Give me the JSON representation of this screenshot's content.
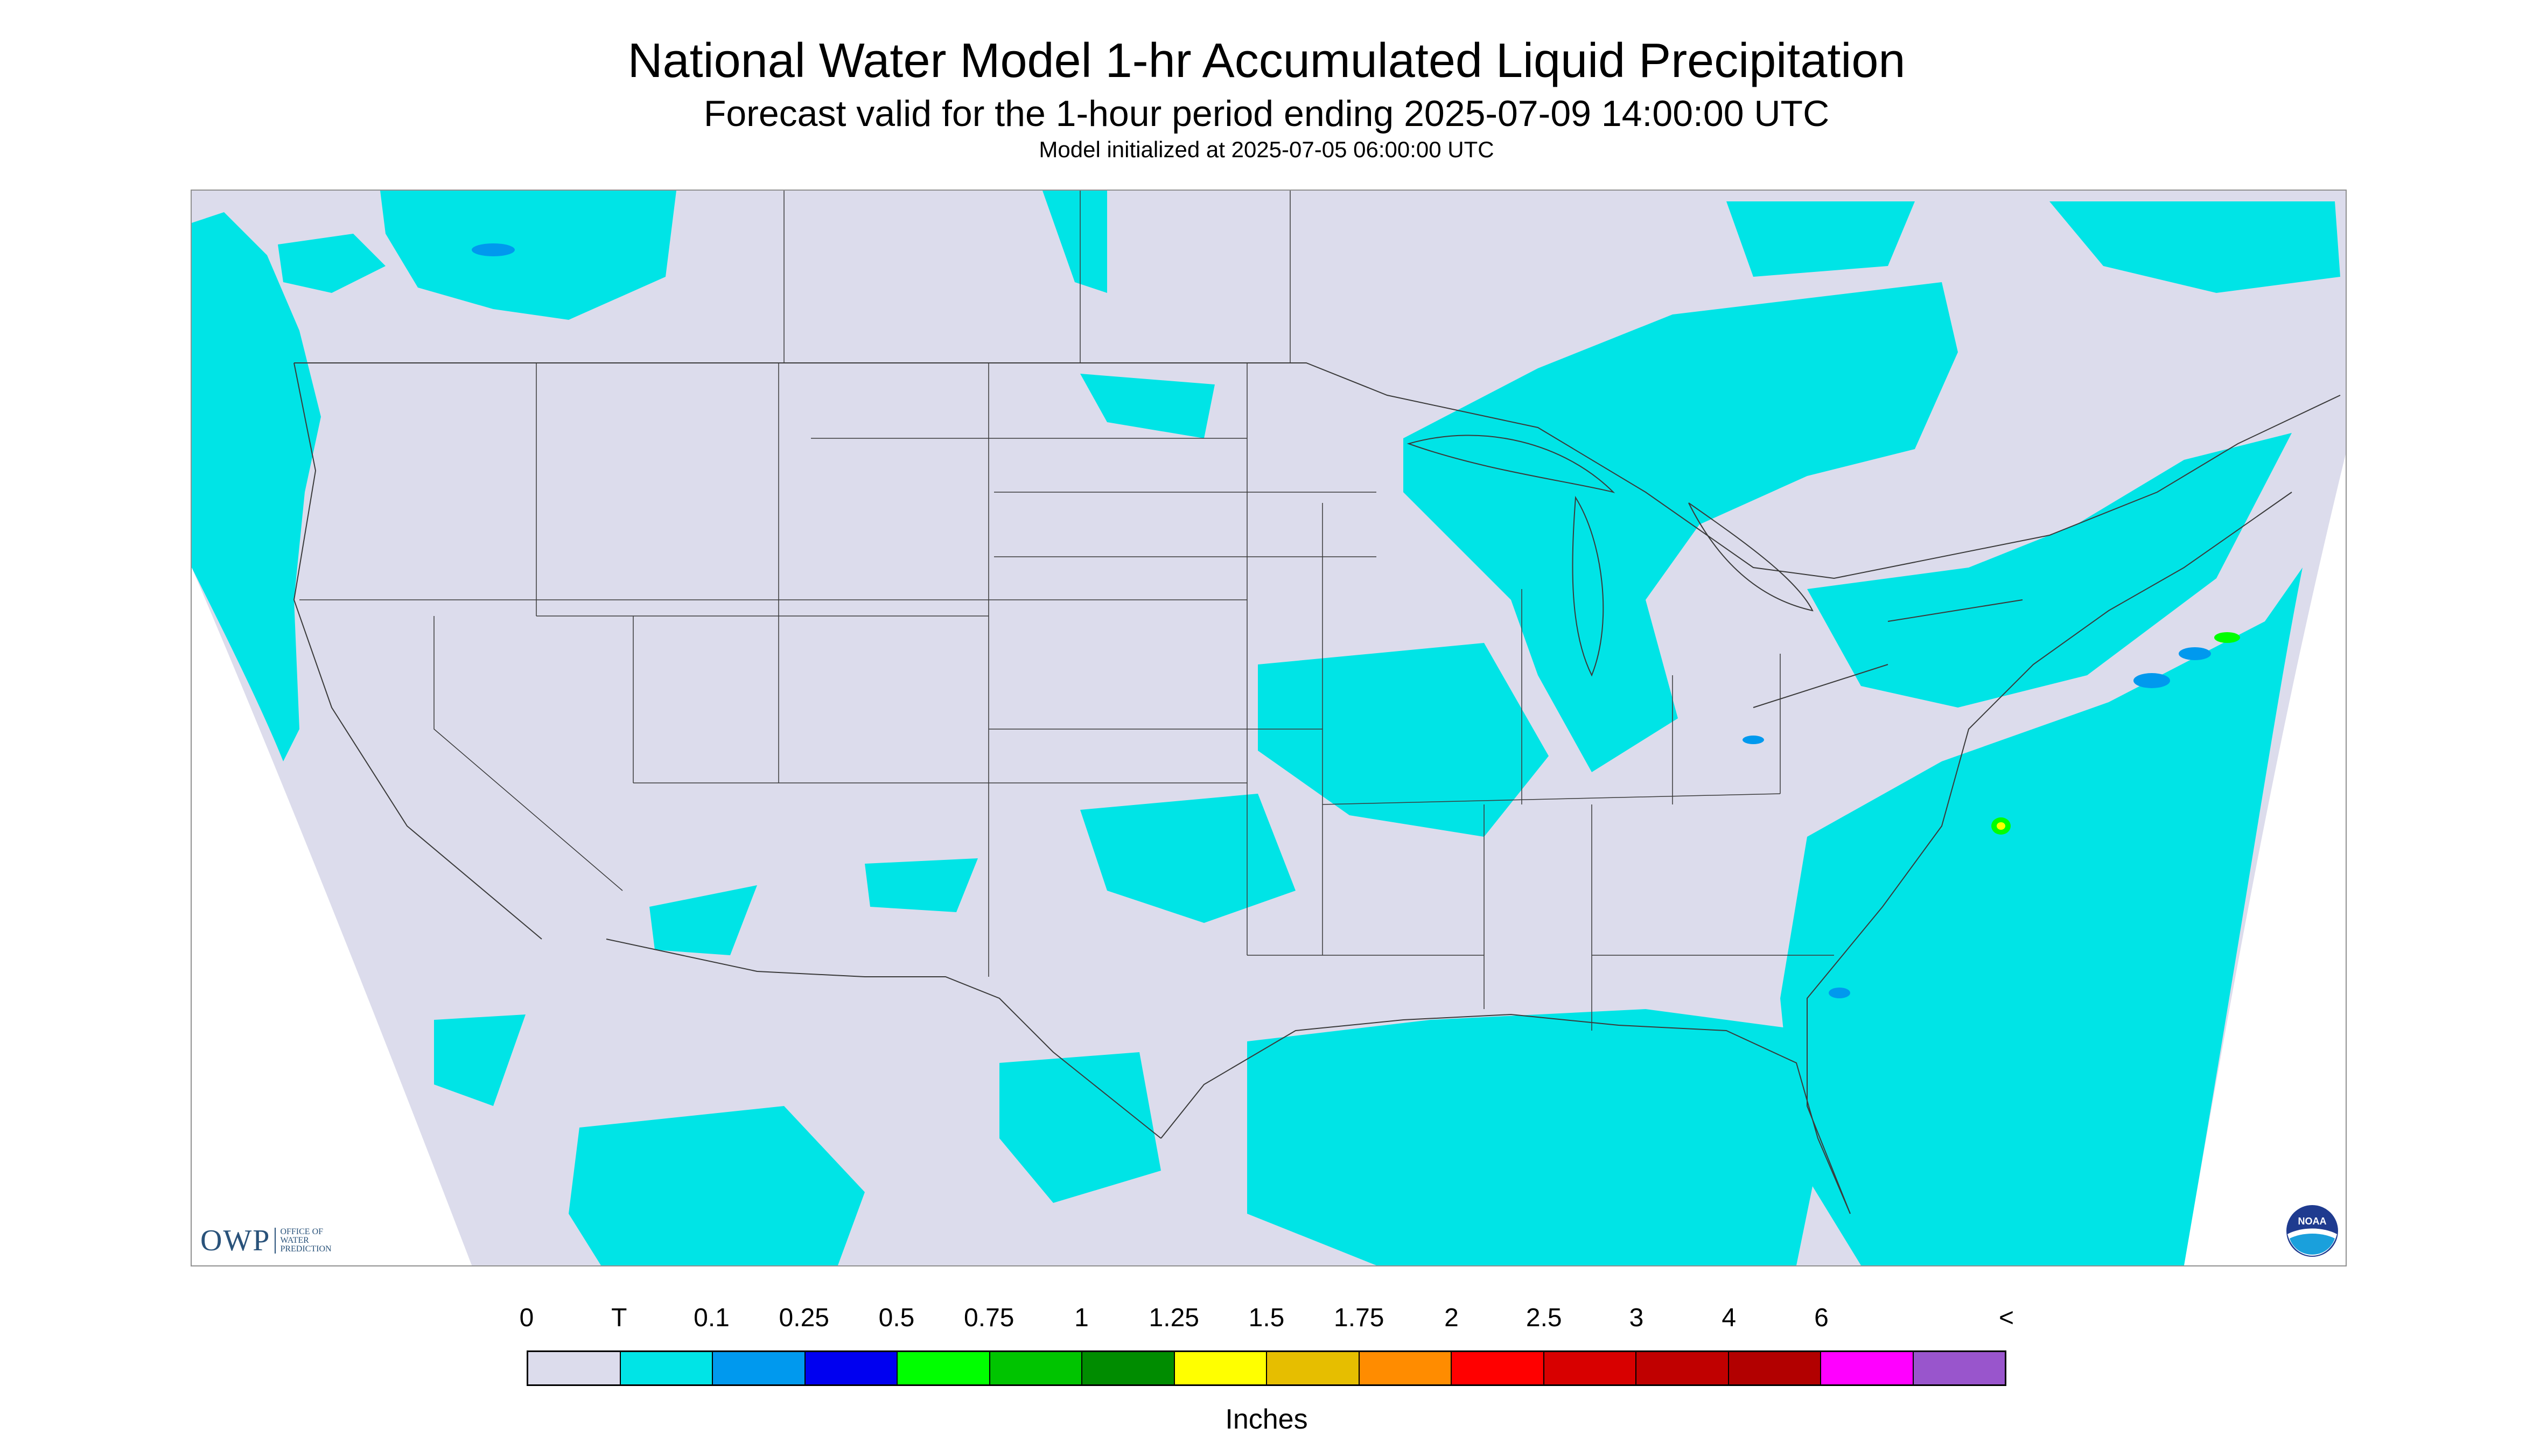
{
  "title": "National Water Model 1-hr Accumulated Liquid Precipitation",
  "subtitle": "Forecast valid for the 1-hour period ending 2025-07-09 14:00:00 UTC",
  "init_line": "Model initialized at 2025-07-05 06:00:00 UTC",
  "colors": {
    "background_zero": "#dcdcec",
    "trace": "#00e4e6",
    "outside_domain": "#ffffff",
    "borders": "#3a3a3a"
  },
  "map": {
    "region": "Continental United States and surrounding areas",
    "logos": [
      "owp-logo",
      "noaa-logo"
    ]
  },
  "owp_logo": {
    "mark": "OWP",
    "line1": "OFFICE OF",
    "line2": "WATER",
    "line3": "PREDICTION"
  },
  "noaa_logo": {
    "text": "NOAA"
  },
  "legend": {
    "tick_labels": [
      "0",
      "T",
      "0.1",
      "0.25",
      "0.5",
      "0.75",
      "1",
      "1.25",
      "1.5",
      "1.75",
      "2",
      "2.5",
      "3",
      "4",
      "6",
      "<"
    ],
    "swatch_colors": [
      "#dcdcec",
      "#00e4e6",
      "#0099ee",
      "#0000f0",
      "#00ff00",
      "#00c400",
      "#008c00",
      "#ffff00",
      "#e6be00",
      "#ff8c00",
      "#ff0000",
      "#d80000",
      "#c00000",
      "#b20000",
      "#ff00ff",
      "#9955cc"
    ],
    "units": "Inches"
  }
}
